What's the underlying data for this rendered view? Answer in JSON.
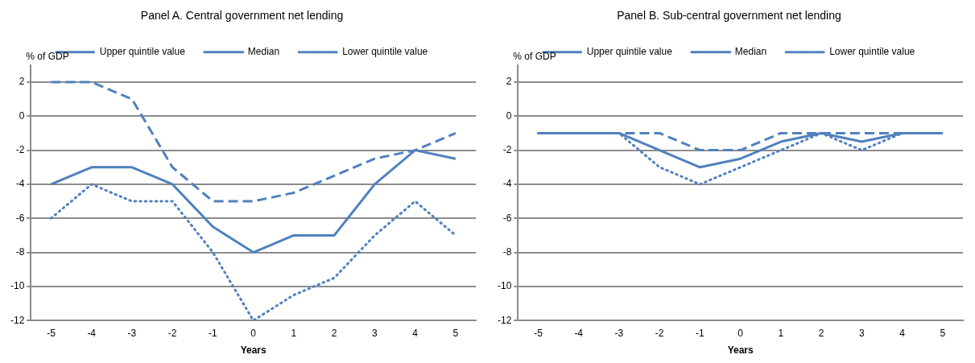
{
  "chart_data": [
    {
      "type": "line",
      "title": "Panel A. Central government net lending",
      "xlabel": "Years",
      "ylabel": "% of GDP",
      "categories": [
        "-5",
        "-4",
        "-3",
        "-2",
        "-1",
        "0",
        "1",
        "2",
        "3",
        "4",
        "5"
      ],
      "ylim": [
        -12,
        3
      ],
      "yticks": [
        -12,
        -10,
        -8,
        -6,
        -4,
        -2,
        0,
        2
      ],
      "grid": "y",
      "legend": "top",
      "marker": "none",
      "series": [
        {
          "name": "Upper quintile value",
          "color": "#4f81bd",
          "line_style": "dashed",
          "values": [
            2,
            2,
            1,
            -3,
            -5,
            -5,
            -4.5,
            -3.5,
            -2.5,
            -2,
            -1
          ]
        },
        {
          "name": "Median",
          "color": "#4f81bd",
          "line_style": "solid",
          "values": [
            -4,
            -3,
            -3,
            -4,
            -6.5,
            -8,
            -7,
            -7,
            -4,
            -2,
            -2.5
          ]
        },
        {
          "name": "Lower quintile value",
          "color": "#4f81bd",
          "line_style": "dotted",
          "values": [
            -6,
            -4,
            -5,
            -5,
            -8,
            -12,
            -10.5,
            -9.5,
            -7,
            -5,
            -7
          ]
        }
      ]
    },
    {
      "type": "line",
      "title": "Panel B. Sub-central government net lending",
      "xlabel": "Years",
      "ylabel": "% of GDP",
      "categories": [
        "-5",
        "-4",
        "-3",
        "-2",
        "-1",
        "0",
        "1",
        "2",
        "3",
        "4",
        "5"
      ],
      "ylim": [
        -12,
        3
      ],
      "yticks": [
        -12,
        -10,
        -8,
        -6,
        -4,
        -2,
        0,
        2
      ],
      "grid": "y",
      "legend": "top",
      "marker": "none",
      "series": [
        {
          "name": "Upper quintile value",
          "color": "#4f81bd",
          "line_style": "dashed",
          "values": [
            -1,
            -1,
            -1,
            -1,
            -2,
            -2,
            -1,
            -1,
            -1,
            -1,
            -1
          ]
        },
        {
          "name": "Median",
          "color": "#4f81bd",
          "line_style": "solid",
          "values": [
            -1,
            -1,
            -1,
            -2,
            -3,
            -2.5,
            -1.5,
            -1,
            -1.5,
            -1,
            -1
          ]
        },
        {
          "name": "Lower quintile value",
          "color": "#4f81bd",
          "line_style": "dotted",
          "values": [
            -1,
            -1,
            -1,
            -3,
            -4,
            -3,
            -2,
            -1,
            -2,
            -1,
            -1
          ]
        }
      ]
    }
  ]
}
